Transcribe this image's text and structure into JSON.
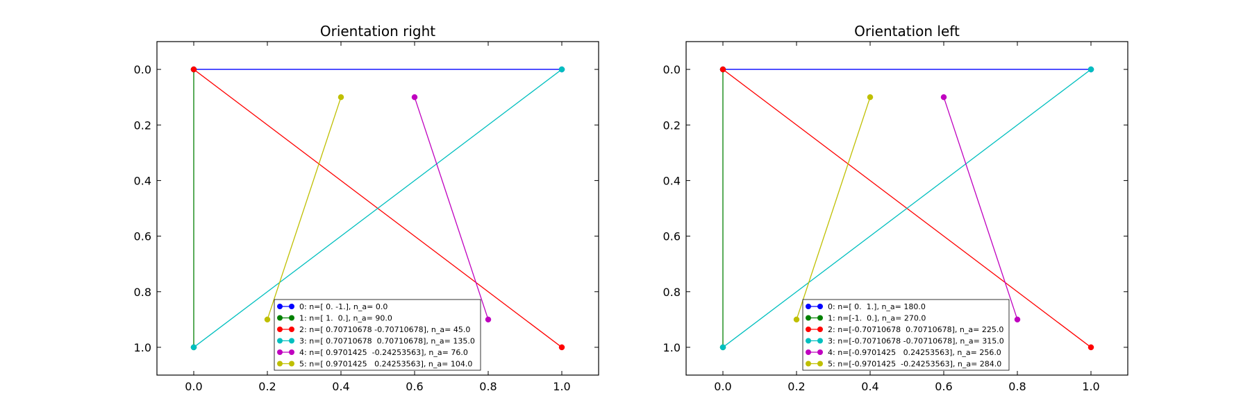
{
  "chart_data": [
    {
      "type": "line",
      "title": "Orientation right",
      "xlim": [
        -0.1,
        1.1
      ],
      "ylim": [
        1.1,
        -0.1
      ],
      "y_inverted": true,
      "xticks": [
        0.0,
        0.2,
        0.4,
        0.6,
        0.8,
        1.0
      ],
      "xtick_labels": [
        "0.0",
        "0.2",
        "0.4",
        "0.6",
        "0.8",
        "1.0"
      ],
      "yticks": [
        0.0,
        0.2,
        0.4,
        0.6,
        0.8,
        1.0
      ],
      "ytick_labels": [
        "0.0",
        "0.2",
        "0.4",
        "0.6",
        "0.8",
        "1.0"
      ],
      "grid": false,
      "legend_position": "lower-center",
      "series": [
        {
          "name": "0: n=[ 0. -1.], n_a= 0.0",
          "color": "#0000ff",
          "x": [
            0.0,
            1.0
          ],
          "y": [
            0.0,
            0.0
          ]
        },
        {
          "name": "1: n=[ 1.  0.], n_a= 90.0",
          "color": "#008000",
          "x": [
            0.0,
            0.0
          ],
          "y": [
            0.0,
            1.0
          ]
        },
        {
          "name": "2: n=[ 0.70710678 -0.70710678], n_a= 45.0",
          "color": "#ff0000",
          "x": [
            0.0,
            1.0
          ],
          "y": [
            0.0,
            1.0
          ]
        },
        {
          "name": "3: n=[ 0.70710678  0.70710678], n_a= 135.0",
          "color": "#00bfbf",
          "x": [
            0.0,
            1.0
          ],
          "y": [
            1.0,
            0.0
          ]
        },
        {
          "name": "4: n=[ 0.9701425  -0.24253563], n_a= 76.0",
          "color": "#bf00bf",
          "x": [
            0.6,
            0.8
          ],
          "y": [
            0.1,
            0.9
          ]
        },
        {
          "name": "5: n=[ 0.9701425   0.24253563], n_a= 104.0",
          "color": "#bfbf00",
          "x": [
            0.2,
            0.4
          ],
          "y": [
            0.9,
            0.1
          ]
        }
      ]
    },
    {
      "type": "line",
      "title": "Orientation left",
      "xlim": [
        -0.1,
        1.1
      ],
      "ylim": [
        1.1,
        -0.1
      ],
      "y_inverted": true,
      "xticks": [
        0.0,
        0.2,
        0.4,
        0.6,
        0.8,
        1.0
      ],
      "xtick_labels": [
        "0.0",
        "0.2",
        "0.4",
        "0.6",
        "0.8",
        "1.0"
      ],
      "yticks": [
        0.0,
        0.2,
        0.4,
        0.6,
        0.8,
        1.0
      ],
      "ytick_labels": [
        "0.0",
        "0.2",
        "0.4",
        "0.6",
        "0.8",
        "1.0"
      ],
      "grid": false,
      "legend_position": "lower-center",
      "series": [
        {
          "name": "0: n=[ 0.  1.], n_a= 180.0",
          "color": "#0000ff",
          "x": [
            0.0,
            1.0
          ],
          "y": [
            0.0,
            0.0
          ]
        },
        {
          "name": "1: n=[-1.  0.], n_a= 270.0",
          "color": "#008000",
          "x": [
            0.0,
            0.0
          ],
          "y": [
            0.0,
            1.0
          ]
        },
        {
          "name": "2: n=[-0.70710678  0.70710678], n_a= 225.0",
          "color": "#ff0000",
          "x": [
            0.0,
            1.0
          ],
          "y": [
            0.0,
            1.0
          ]
        },
        {
          "name": "3: n=[-0.70710678 -0.70710678], n_a= 315.0",
          "color": "#00bfbf",
          "x": [
            0.0,
            1.0
          ],
          "y": [
            1.0,
            0.0
          ]
        },
        {
          "name": "4: n=[-0.9701425   0.24253563], n_a= 256.0",
          "color": "#bf00bf",
          "x": [
            0.6,
            0.8
          ],
          "y": [
            0.1,
            0.9
          ]
        },
        {
          "name": "5: n=[-0.9701425  -0.24253563], n_a= 284.0",
          "color": "#bfbf00",
          "x": [
            0.2,
            0.4
          ],
          "y": [
            0.9,
            0.1
          ]
        }
      ]
    }
  ]
}
